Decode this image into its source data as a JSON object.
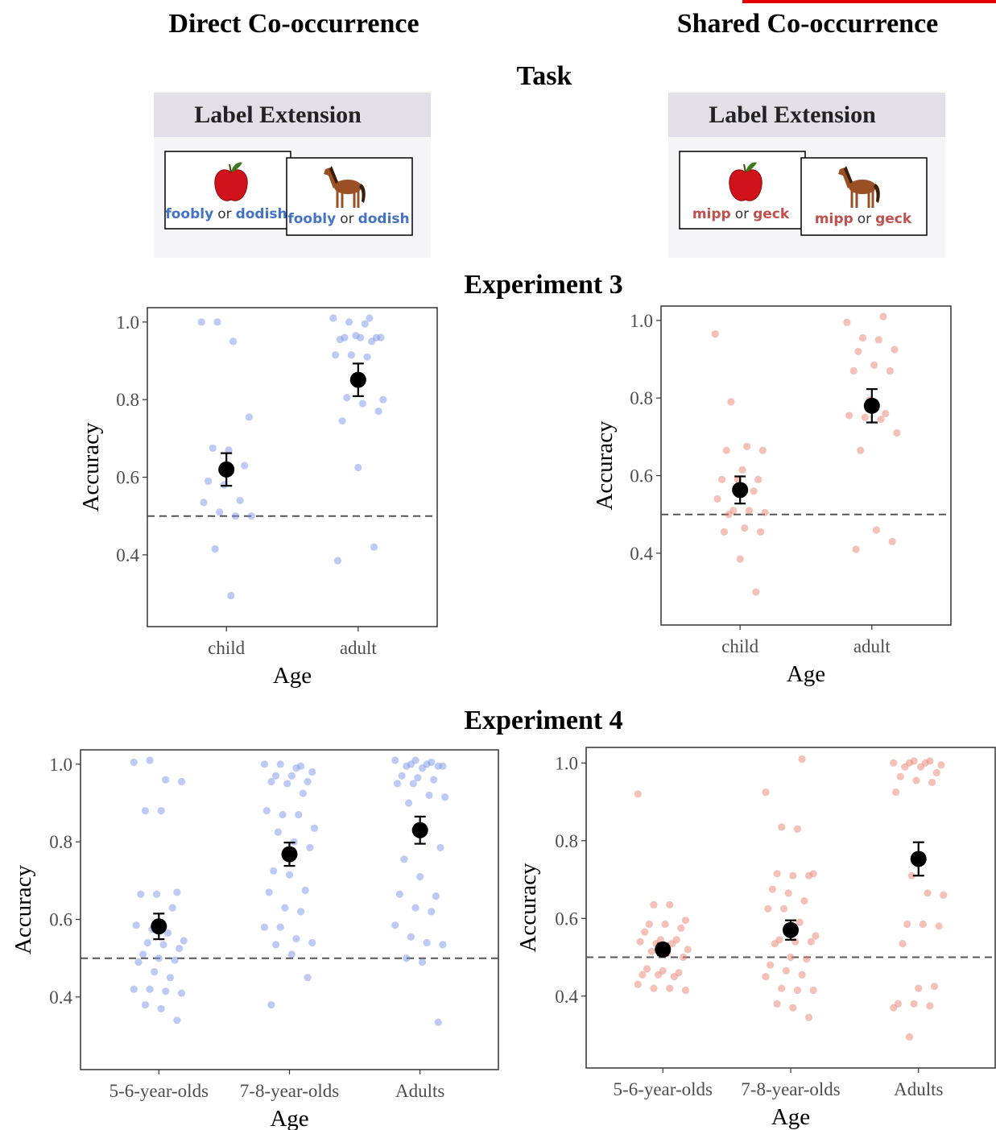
{
  "columns": [
    "Direct Co-occurrence",
    "Shared Co-occurrence"
  ],
  "task_title": "Task",
  "panels": [
    {
      "header": "Label Extension",
      "color": "#4472c4",
      "items": [
        {
          "word1": "foobly",
          "or": "or",
          "word2": "dodish"
        },
        {
          "word1": "foobly",
          "or": "or",
          "word2": "dodish"
        }
      ]
    },
    {
      "header": "Label Extension",
      "color": "#c0504d",
      "items": [
        {
          "word1": "mipp",
          "or": "or",
          "word2": "geck"
        },
        {
          "word1": "mipp",
          "or": "or",
          "word2": "geck"
        }
      ]
    }
  ],
  "experiments": [
    "Experiment 3",
    "Experiment 4"
  ],
  "chart_data": [
    {
      "type": "strip",
      "color": "#7b96e8",
      "categories": [
        "child",
        "adult"
      ],
      "points": [
        [
          1.0,
          1.0,
          0.95,
          0.755,
          0.675,
          0.67,
          0.63,
          0.59,
          0.58,
          0.54,
          0.535,
          0.51,
          0.5,
          0.5,
          0.415,
          0.295
        ],
        [
          1.01,
          1.01,
          1.0,
          0.995,
          0.96,
          0.96,
          0.96,
          0.96,
          0.955,
          0.965,
          0.95,
          0.915,
          0.915,
          0.91,
          0.8,
          0.805,
          0.79,
          0.77,
          0.745,
          0.625,
          0.42,
          0.385
        ]
      ],
      "means": [
        0.62,
        0.851
      ],
      "errors": [
        0.042,
        0.042
      ],
      "reference_line": 0.5,
      "xlabel": "Age",
      "ylabel": "Accuracy",
      "ylim": [
        0.215,
        1.037
      ],
      "yticks": [
        0.4,
        0.6,
        0.8,
        {
          "value": 1,
          "label": "1.0"
        }
      ],
      "grid": false
    },
    {
      "type": "strip",
      "color": "#e8836f",
      "categories": [
        "child",
        "adult"
      ],
      "points": [
        [
          0.965,
          0.79,
          0.675,
          0.665,
          0.665,
          0.615,
          0.59,
          0.59,
          0.59,
          0.56,
          0.54,
          0.51,
          0.51,
          0.505,
          0.5,
          0.465,
          0.455,
          0.455,
          0.385,
          0.3
        ],
        [
          1.01,
          0.995,
          0.955,
          0.95,
          0.925,
          0.92,
          0.885,
          0.87,
          0.87,
          0.795,
          0.76,
          0.755,
          0.75,
          0.745,
          0.71,
          0.665,
          0.46,
          0.43,
          0.41
        ]
      ],
      "means": [
        0.563,
        0.78
      ],
      "errors": [
        0.035,
        0.043
      ],
      "reference_line": 0.5,
      "xlabel": "Age",
      "ylabel": "Accuracy",
      "ylim": [
        0.215,
        1.037
      ],
      "yticks": [
        0.4,
        0.6,
        0.8,
        {
          "value": 1,
          "label": "1.0"
        }
      ],
      "grid": false
    },
    {
      "type": "strip",
      "color": "#7b96e8",
      "categories": [
        "5-6-year-olds",
        "7-8-year-olds",
        "Adults"
      ],
      "points": [
        [
          1.005,
          1.01,
          0.96,
          0.955,
          0.88,
          0.88,
          0.67,
          0.665,
          0.665,
          0.63,
          0.585,
          0.575,
          0.565,
          0.545,
          0.54,
          0.535,
          0.525,
          0.51,
          0.5,
          0.495,
          0.49,
          0.465,
          0.45,
          0.42,
          0.42,
          0.415,
          0.41,
          0.38,
          0.37,
          0.34
        ],
        [
          0.995,
          1.0,
          1.0,
          0.99,
          0.98,
          0.97,
          0.97,
          0.955,
          0.955,
          0.95,
          0.925,
          0.88,
          0.87,
          0.87,
          0.835,
          0.825,
          0.8,
          0.785,
          0.725,
          0.715,
          0.675,
          0.67,
          0.63,
          0.62,
          0.58,
          0.58,
          0.55,
          0.54,
          0.535,
          0.51,
          0.45,
          0.38
        ],
        [
          1.01,
          1.005,
          1.01,
          1.0,
          1.0,
          0.995,
          0.995,
          0.99,
          0.995,
          0.97,
          0.965,
          0.96,
          0.95,
          0.95,
          0.92,
          0.915,
          0.9,
          0.83,
          0.785,
          0.755,
          0.71,
          0.66,
          0.665,
          0.63,
          0.62,
          0.585,
          0.555,
          0.54,
          0.535,
          0.5,
          0.49,
          0.335
        ]
      ],
      "means": [
        0.582,
        0.768,
        0.83
      ],
      "errors": [
        0.033,
        0.03,
        0.035
      ],
      "reference_line": 0.5,
      "xlabel": "Age",
      "ylabel": "Accuracy",
      "ylim": [
        0.213,
        1.037
      ],
      "yticks": [
        0.4,
        0.6,
        0.8,
        {
          "value": 1,
          "label": "1.0"
        }
      ],
      "grid": false
    },
    {
      "type": "strip",
      "color": "#e8836f",
      "categories": [
        "5-6-year-olds",
        "7-8-year-olds",
        "Adults"
      ],
      "points": [
        [
          0.92,
          0.635,
          0.635,
          0.595,
          0.585,
          0.585,
          0.575,
          0.565,
          0.545,
          0.545,
          0.54,
          0.535,
          0.535,
          0.52,
          0.515,
          0.51,
          0.5,
          0.47,
          0.465,
          0.46,
          0.455,
          0.455,
          0.45,
          0.43,
          0.42,
          0.42,
          0.415
        ],
        [
          1.01,
          0.925,
          0.835,
          0.83,
          0.715,
          0.715,
          0.71,
          0.71,
          0.675,
          0.665,
          0.645,
          0.625,
          0.625,
          0.59,
          0.555,
          0.545,
          0.54,
          0.54,
          0.535,
          0.5,
          0.495,
          0.48,
          0.465,
          0.455,
          0.45,
          0.42,
          0.415,
          0.415,
          0.38,
          0.37,
          0.345
        ],
        [
          1.005,
          1.005,
          1.0,
          1.0,
          1.0,
          0.995,
          0.99,
          0.99,
          0.975,
          0.965,
          0.955,
          0.95,
          0.925,
          0.71,
          0.665,
          0.66,
          0.585,
          0.585,
          0.58,
          0.535,
          0.42,
          0.425,
          0.38,
          0.38,
          0.375,
          0.37,
          0.295
        ]
      ],
      "means": [
        0.52,
        0.57,
        0.753
      ],
      "errors": [
        0.015,
        0.025,
        0.043
      ],
      "reference_line": 0.5,
      "xlabel": "Age",
      "ylabel": "Accuracy",
      "ylim": [
        0.215,
        1.04
      ],
      "yticks": [
        0.4,
        0.6,
        0.8,
        {
          "value": 1,
          "label": "1.0"
        }
      ],
      "grid": false
    }
  ]
}
